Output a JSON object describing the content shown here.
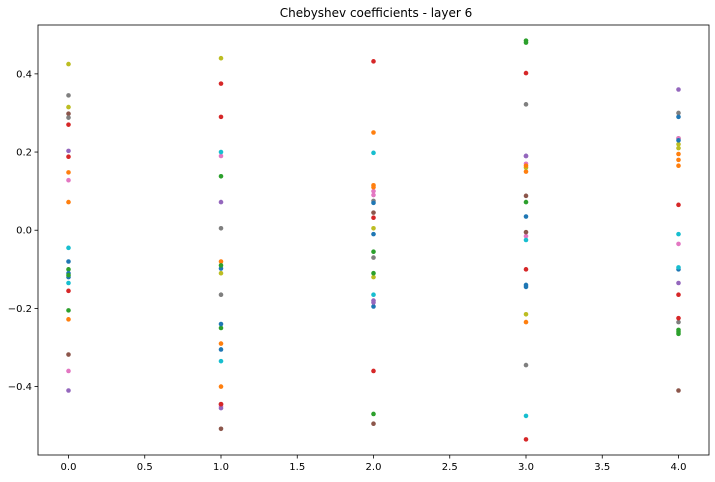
{
  "chart_data": {
    "type": "scatter",
    "title": "Chebyshev coefficients - layer 6",
    "xlabel": "",
    "ylabel": "",
    "xlim": [
      -0.2,
      4.2
    ],
    "ylim": [
      -0.575,
      0.525
    ],
    "xticks": [
      0.0,
      0.5,
      1.0,
      1.5,
      2.0,
      2.5,
      3.0,
      3.5,
      4.0
    ],
    "xtick_labels": [
      "0.0",
      "0.5",
      "1.0",
      "1.5",
      "2.0",
      "2.5",
      "3.0",
      "3.5",
      "4.0"
    ],
    "yticks": [
      -0.4,
      -0.2,
      0.0,
      0.2,
      0.4
    ],
    "ytick_labels": [
      "−0.4",
      "−0.2",
      "0.0",
      "0.2",
      "0.4"
    ],
    "grid": false,
    "legend": false,
    "colors": [
      "#1f77b4",
      "#ff7f0e",
      "#2ca02c",
      "#d62728",
      "#9467bd",
      "#8c564b",
      "#e377c2",
      "#7f7f7f",
      "#bcbd22",
      "#17becf"
    ],
    "series": [
      {
        "x": [
          0,
          1,
          2,
          3,
          4
        ],
        "y": [
          -0.08,
          -0.305,
          -0.195,
          0.035,
          -0.1
        ]
      },
      {
        "x": [
          0,
          1,
          2,
          3,
          4
        ],
        "y": [
          0.148,
          -0.08,
          0.115,
          -0.235,
          0.18
        ]
      },
      {
        "x": [
          0,
          1,
          2,
          3,
          4
        ],
        "y": [
          -0.1,
          0.138,
          -0.055,
          0.072,
          -0.26
        ]
      },
      {
        "x": [
          0,
          1,
          2,
          3,
          4
        ],
        "y": [
          0.188,
          0.375,
          0.032,
          -0.1,
          -0.165
        ]
      },
      {
        "x": [
          0,
          1,
          2,
          3,
          4
        ],
        "y": [
          0.203,
          0.072,
          -0.18,
          0.19,
          0.36
        ]
      },
      {
        "x": [
          0,
          1,
          2,
          3,
          4
        ],
        "y": [
          0.298,
          -0.508,
          -0.495,
          0.088,
          0.235
        ]
      },
      {
        "x": [
          0,
          1,
          2,
          3,
          4
        ],
        "y": [
          0.128,
          -0.45,
          0.09,
          -0.015,
          0.235
        ]
      },
      {
        "x": [
          0,
          1,
          2,
          3,
          4
        ],
        "y": [
          0.288,
          0.005,
          -0.07,
          0.322,
          0.3
        ]
      },
      {
        "x": [
          0,
          1,
          2,
          3,
          4
        ],
        "y": [
          0.425,
          0.44,
          0.005,
          -0.215,
          0.21
        ]
      },
      {
        "x": [
          0,
          1,
          2,
          3,
          4
        ],
        "y": [
          -0.045,
          -0.335,
          0.198,
          -0.475,
          -0.095
        ]
      },
      {
        "x": [
          0,
          1,
          2,
          3,
          4
        ],
        "y": [
          -0.12,
          -0.098,
          -0.01,
          -0.145,
          0.29
        ]
      },
      {
        "x": [
          0,
          1,
          2,
          3,
          4
        ],
        "y": [
          0.072,
          -0.29,
          0.25,
          0.15,
          0.165
        ]
      },
      {
        "x": [
          0,
          1,
          2,
          3,
          4
        ],
        "y": [
          -0.205,
          -0.25,
          -0.47,
          0.48,
          -0.255
        ]
      },
      {
        "x": [
          0,
          1,
          2,
          3,
          4
        ],
        "y": [
          0.27,
          0.29,
          0.432,
          0.402,
          0.065
        ]
      },
      {
        "x": [
          0,
          1,
          2,
          3,
          4
        ],
        "y": [
          -0.41,
          -0.455,
          -0.185,
          0.19,
          -0.135
        ]
      },
      {
        "x": [
          0,
          1,
          2,
          3,
          4
        ],
        "y": [
          -0.318,
          -0.445,
          0.045,
          -0.005,
          -0.41
        ]
      },
      {
        "x": [
          0,
          1,
          2,
          3,
          4
        ],
        "y": [
          -0.36,
          0.19,
          0.1,
          0.17,
          -0.035
        ]
      },
      {
        "x": [
          0,
          1,
          2,
          3,
          4
        ],
        "y": [
          0.345,
          -0.165,
          0.075,
          -0.345,
          -0.235
        ]
      },
      {
        "x": [
          0,
          1,
          2,
          3,
          4
        ],
        "y": [
          0.315,
          -0.11,
          -0.12,
          0.16,
          0.22
        ]
      },
      {
        "x": [
          0,
          1,
          2,
          3,
          4
        ],
        "y": [
          -0.135,
          0.2,
          -0.165,
          -0.025,
          -0.01
        ]
      },
      {
        "x": [
          0,
          1,
          2,
          3,
          4
        ],
        "y": [
          -0.11,
          -0.24,
          0.07,
          -0.14,
          0.23
        ]
      },
      {
        "x": [
          0,
          1,
          2,
          3,
          4
        ],
        "y": [
          -0.228,
          -0.4,
          0.11,
          0.165,
          0.195
        ]
      },
      {
        "x": [
          0,
          1,
          2,
          3,
          4
        ],
        "y": [
          -0.115,
          -0.09,
          -0.11,
          0.485,
          -0.265
        ]
      },
      {
        "x": [
          0,
          1,
          2,
          3,
          4
        ],
        "y": [
          -0.155,
          -0.445,
          -0.36,
          -0.535,
          -0.225
        ]
      }
    ]
  }
}
